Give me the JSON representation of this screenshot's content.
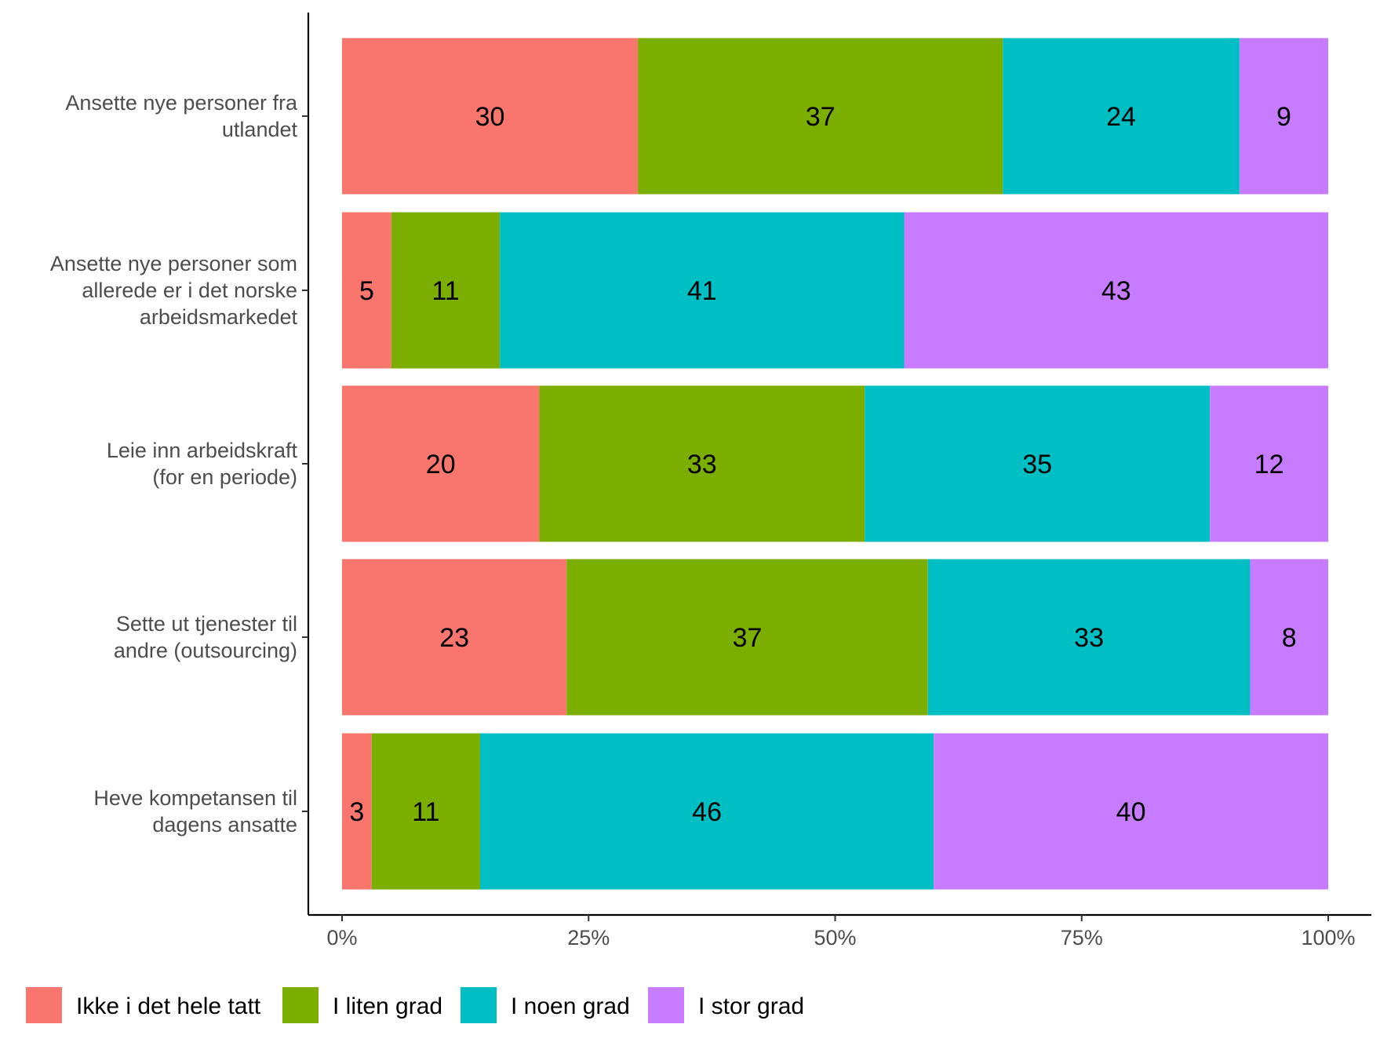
{
  "chart_data": {
    "type": "bar",
    "orientation": "horizontal",
    "stacked": true,
    "normalized": true,
    "categories": [
      [
        "Ansette nye personer fra",
        "utlandet"
      ],
      [
        "Ansette nye personer som",
        "allerede er i det norske",
        "arbeidsmarkedet"
      ],
      [
        "Leie inn arbeidskraft",
        "(for en periode)"
      ],
      [
        "Sette ut tjenester til",
        "andre (outsourcing)"
      ],
      [
        "Heve kompetansen til",
        "dagens ansatte"
      ]
    ],
    "series": [
      {
        "name": "Ikke i det hele tatt",
        "color": "#F8766D",
        "values": [
          30,
          5,
          20,
          23,
          3
        ]
      },
      {
        "name": "I liten grad",
        "color": "#7CAE00",
        "values": [
          37,
          11,
          33,
          37,
          11
        ]
      },
      {
        "name": "I noen grad",
        "color": "#00BFC4",
        "values": [
          24,
          41,
          35,
          33,
          46
        ]
      },
      {
        "name": "I stor grad",
        "color": "#C77CFF",
        "values": [
          9,
          43,
          12,
          8,
          40
        ]
      }
    ],
    "xlim": [
      0,
      100
    ],
    "xticks": [
      "0%",
      "25%",
      "50%",
      "75%",
      "100%"
    ],
    "xlabel": "",
    "ylabel": "",
    "grid": false,
    "legend_position": "bottom"
  }
}
